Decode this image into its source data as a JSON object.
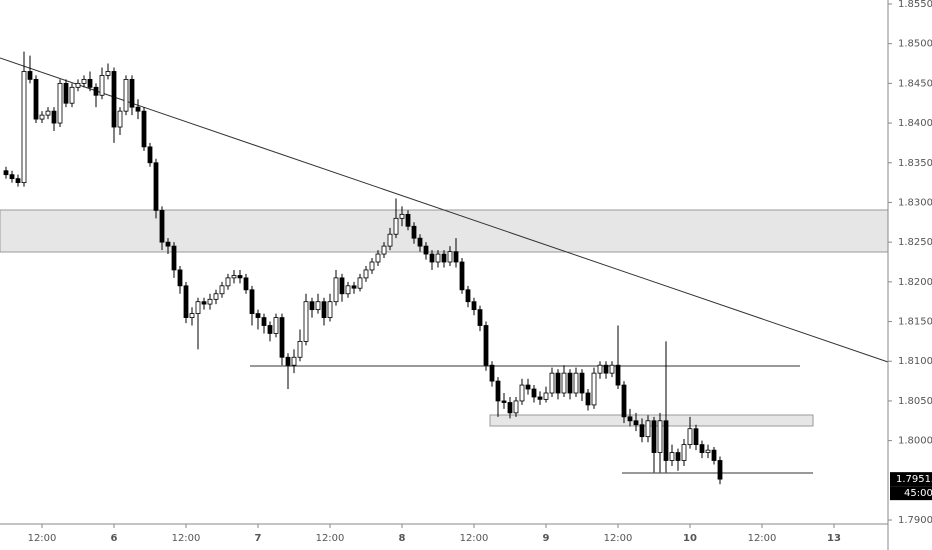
{
  "chart_data": {
    "type": "candlestick",
    "categories": [
      null,
      null,
      null,
      null,
      null,
      null,
      "12:00",
      null,
      null,
      null,
      null,
      null,
      null,
      null,
      null,
      null,
      null,
      null,
      "6",
      null,
      null,
      null,
      null,
      null,
      null,
      null,
      null,
      null,
      null,
      null,
      "12:00",
      null,
      null,
      null,
      null,
      null,
      null,
      null,
      null,
      null,
      null,
      null,
      "7",
      null,
      null,
      null,
      null,
      null,
      null,
      null,
      null,
      null,
      null,
      null,
      "12:00",
      null,
      null,
      null,
      null,
      null,
      null,
      null,
      null,
      null,
      null,
      null,
      "8",
      null,
      null,
      null,
      null,
      null,
      null,
      null,
      null,
      null,
      null,
      null,
      "12:00",
      null,
      null,
      null,
      null,
      null,
      null,
      null,
      null,
      null,
      null,
      null,
      "9",
      null,
      null,
      null,
      null,
      null,
      null,
      null,
      null,
      null,
      null,
      null,
      "12:00",
      null,
      null,
      null,
      null,
      null,
      null,
      null,
      null,
      null,
      null,
      null,
      "10",
      null,
      null,
      null,
      null,
      null,
      null,
      null,
      null,
      null,
      null,
      null,
      "12:00",
      null,
      null,
      null,
      null,
      null,
      null,
      null,
      null,
      null,
      null,
      null,
      "13",
      null,
      null,
      null,
      null,
      null,
      null,
      null,
      null
    ],
    "open": [
      1.834,
      1.8335,
      1.833,
      1.8325,
      1.8465,
      1.8455,
      1.8405,
      1.841,
      1.8415,
      1.84,
      1.845,
      1.8425,
      1.8445,
      1.845,
      1.8455,
      1.8445,
      1.8435,
      1.846,
      1.8465,
      1.8395,
      1.8415,
      1.8455,
      1.842,
      1.8415,
      1.837,
      1.835,
      1.829,
      1.825,
      1.8245,
      1.8215,
      1.8195,
      1.8155,
      1.816,
      1.8175,
      1.8172,
      1.8178,
      1.8185,
      1.8195,
      1.8205,
      1.8208,
      1.8205,
      1.819,
      1.816,
      1.8155,
      1.8145,
      1.8135,
      1.8155,
      1.8105,
      1.8095,
      1.8105,
      1.8125,
      1.8175,
      1.8165,
      1.8175,
      1.8155,
      1.8175,
      1.8205,
      1.8185,
      1.8195,
      1.8192,
      1.8205,
      1.8215,
      1.8225,
      1.8235,
      1.8245,
      1.826,
      1.828,
      1.8285,
      1.827,
      1.8255,
      1.8245,
      1.8235,
      1.8225,
      1.8235,
      1.8225,
      1.8238,
      1.8225,
      1.819,
      1.8175,
      1.8165,
      1.8145,
      1.8095,
      1.8075,
      1.805,
      1.8048,
      1.8035,
      1.805,
      1.807,
      1.8065,
      1.8055,
      1.8052,
      1.806,
      1.8085,
      1.806,
      1.8085,
      1.806,
      1.8085,
      1.806,
      1.8045,
      1.8085,
      1.8095,
      1.8085,
      1.8095,
      1.807,
      1.803,
      1.8025,
      1.802,
      1.8005,
      1.8025,
      1.7985,
      1.8025,
      1.7975,
      1.7985,
      1.7975,
      1.7995,
      1.8015,
      1.7995,
      1.7985,
      1.7988,
      1.7975,
      null,
      null,
      null,
      null,
      null,
      null,
      null,
      null,
      null,
      null,
      null,
      null,
      null,
      null,
      null,
      null,
      null,
      null,
      null,
      null,
      null,
      null,
      null,
      null,
      null,
      null,
      null
    ],
    "high": [
      1.8345,
      1.834,
      1.8335,
      1.849,
      1.8485,
      1.846,
      1.8415,
      1.842,
      1.842,
      1.8455,
      1.8455,
      1.845,
      1.8455,
      1.846,
      1.8465,
      1.845,
      1.847,
      1.8475,
      1.847,
      1.842,
      1.846,
      1.846,
      1.843,
      1.842,
      1.8375,
      1.8355,
      1.8295,
      1.8255,
      1.825,
      1.822,
      1.82,
      1.8168,
      1.818,
      1.818,
      1.8185,
      1.819,
      1.82,
      1.821,
      1.8215,
      1.8215,
      1.821,
      1.8195,
      1.8165,
      1.816,
      1.815,
      1.816,
      1.816,
      1.811,
      1.8115,
      1.814,
      1.8185,
      1.818,
      1.8185,
      1.818,
      1.8185,
      1.8215,
      1.821,
      1.82,
      1.82,
      1.821,
      1.822,
      1.823,
      1.824,
      1.825,
      1.8268,
      1.8305,
      1.8295,
      1.829,
      1.8275,
      1.826,
      1.825,
      1.824,
      1.824,
      1.824,
      1.8245,
      1.8255,
      1.823,
      1.8195,
      1.818,
      1.817,
      1.815,
      1.81,
      1.808,
      1.806,
      1.8055,
      1.8055,
      1.8078,
      1.8078,
      1.807,
      1.8062,
      1.8068,
      1.8092,
      1.809,
      1.8095,
      1.809,
      1.8092,
      1.809,
      1.8065,
      1.8092,
      1.81,
      1.81,
      1.81,
      1.8145,
      1.8075,
      1.804,
      1.8035,
      1.8028,
      1.8032,
      1.803,
      1.8035,
      1.8125,
      1.7995,
      1.799,
      1.8002,
      1.803,
      1.802,
      1.8,
      1.7995,
      1.7992,
      1.798,
      null,
      null,
      null,
      null,
      null,
      null,
      null,
      null,
      null,
      null,
      null,
      null,
      null,
      null,
      null,
      null,
      null,
      null,
      null,
      null,
      null,
      null,
      null,
      null,
      null,
      null,
      null
    ],
    "low": [
      1.833,
      1.8325,
      1.832,
      1.832,
      1.845,
      1.84,
      1.84,
      1.8405,
      1.839,
      1.8395,
      1.842,
      1.842,
      1.844,
      1.8445,
      1.844,
      1.842,
      1.843,
      1.8455,
      1.8375,
      1.8385,
      1.841,
      1.841,
      1.8405,
      1.8365,
      1.8345,
      1.828,
      1.824,
      1.8235,
      1.8205,
      1.8185,
      1.8148,
      1.8145,
      1.8115,
      1.8165,
      1.8165,
      1.8172,
      1.818,
      1.819,
      1.8198,
      1.8198,
      1.8185,
      1.8145,
      1.814,
      1.8135,
      1.8125,
      1.813,
      1.8095,
      1.8065,
      1.8085,
      1.81,
      1.812,
      1.8155,
      1.816,
      1.8145,
      1.815,
      1.817,
      1.8175,
      1.818,
      1.8185,
      1.8188,
      1.82,
      1.821,
      1.822,
      1.823,
      1.824,
      1.8255,
      1.827,
      1.8265,
      1.8248,
      1.8238,
      1.8228,
      1.8215,
      1.8218,
      1.8218,
      1.822,
      1.8218,
      1.8185,
      1.8168,
      1.8158,
      1.8138,
      1.8088,
      1.8068,
      1.803,
      1.804,
      1.8028,
      1.803,
      1.8045,
      1.8058,
      1.8048,
      1.8045,
      1.8048,
      1.8055,
      1.8052,
      1.8055,
      1.8052,
      1.8055,
      1.805,
      1.8038,
      1.804,
      1.8078,
      1.8078,
      1.808,
      1.8065,
      1.8022,
      1.8018,
      1.8012,
      1.7998,
      1.7998,
      1.796,
      1.796,
      1.796,
      1.7968,
      1.7962,
      1.7968,
      1.799,
      1.7988,
      1.7978,
      1.7978,
      1.797,
      1.7945,
      null,
      null,
      null,
      null,
      null,
      null,
      null,
      null,
      null,
      null,
      null,
      null,
      null,
      null,
      null,
      null,
      null,
      null,
      null,
      null,
      null,
      null,
      null,
      null,
      null,
      null,
      null
    ],
    "close": [
      1.8335,
      1.833,
      1.8325,
      1.8465,
      1.8455,
      1.8405,
      1.841,
      1.8415,
      1.84,
      1.845,
      1.8425,
      1.8445,
      1.845,
      1.8455,
      1.8445,
      1.8435,
      1.846,
      1.8465,
      1.8395,
      1.8415,
      1.8455,
      1.842,
      1.8415,
      1.837,
      1.835,
      1.829,
      1.825,
      1.8245,
      1.8215,
      1.8195,
      1.8155,
      1.816,
      1.8175,
      1.8172,
      1.8178,
      1.8185,
      1.8195,
      1.8205,
      1.8208,
      1.8205,
      1.819,
      1.816,
      1.8155,
      1.8145,
      1.8135,
      1.8155,
      1.8105,
      1.8095,
      1.8105,
      1.8125,
      1.8175,
      1.8165,
      1.8175,
      1.8155,
      1.8175,
      1.8205,
      1.8185,
      1.8195,
      1.8192,
      1.8205,
      1.8215,
      1.8225,
      1.8235,
      1.8245,
      1.826,
      1.828,
      1.8285,
      1.827,
      1.8255,
      1.8245,
      1.8235,
      1.8225,
      1.8235,
      1.8225,
      1.8238,
      1.8225,
      1.819,
      1.8175,
      1.8165,
      1.8145,
      1.8095,
      1.8075,
      1.805,
      1.8048,
      1.8035,
      1.805,
      1.807,
      1.8065,
      1.8055,
      1.8052,
      1.806,
      1.8085,
      1.806,
      1.8085,
      1.806,
      1.8085,
      1.806,
      1.8045,
      1.8085,
      1.8095,
      1.8085,
      1.8095,
      1.807,
      1.803,
      1.8025,
      1.802,
      1.8005,
      1.8025,
      1.7985,
      1.8025,
      1.7975,
      1.7985,
      1.7975,
      1.7995,
      1.8015,
      1.7995,
      1.7985,
      1.7988,
      1.7975,
      1.79515,
      null,
      null,
      null,
      null,
      null,
      null,
      null,
      null,
      null,
      null,
      null,
      null,
      null,
      null,
      null,
      null,
      null,
      null,
      null,
      null,
      null,
      null,
      null,
      null,
      null,
      null,
      null
    ],
    "up_color": "#ffffff",
    "down_color": "#000000",
    "border_color": "#000000",
    "ylim": [
      1.7895,
      1.8555
    ],
    "yticks": [
      {
        "value": 1.79,
        "label": "1.79000"
      },
      {
        "value": 1.8,
        "label": "1.80000"
      },
      {
        "value": 1.805,
        "label": "1.80500"
      },
      {
        "value": 1.81,
        "label": "1.81000"
      },
      {
        "value": 1.815,
        "label": "1.81500"
      },
      {
        "value": 1.82,
        "label": "1.82000"
      },
      {
        "value": 1.825,
        "label": "1.82500"
      },
      {
        "value": 1.83,
        "label": "1.83000"
      },
      {
        "value": 1.835,
        "label": "1.83500"
      },
      {
        "value": 1.84,
        "label": "1.84000"
      },
      {
        "value": 1.845,
        "label": "1.84500"
      },
      {
        "value": 1.85,
        "label": "1.85000"
      },
      {
        "value": 1.855,
        "label": "1.85500"
      }
    ],
    "last_price": 1.79515,
    "countdown": "45:00",
    "grid": false
  }
}
